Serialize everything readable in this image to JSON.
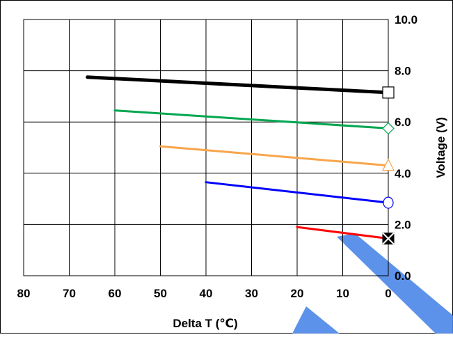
{
  "chart_data": {
    "type": "line",
    "xlabel": "Delta T (℃)",
    "ylabel": "Voltage (V)",
    "xlim": [
      80,
      0
    ],
    "ylim": [
      0,
      10
    ],
    "x_ticks": [
      "80",
      "70",
      "60",
      "50",
      "40",
      "30",
      "20",
      "10",
      "0"
    ],
    "y_ticks": [
      "0.0",
      "2.0",
      "4.0",
      "6.0",
      "8.0",
      "10.0"
    ],
    "y_axis_side": "right",
    "grid": true,
    "series": [
      {
        "color": "#000000",
        "marker": "square",
        "x": [
          66,
          0
        ],
        "y": [
          7.75,
          7.15
        ]
      },
      {
        "color": "#00a651",
        "marker": "diamond",
        "x": [
          60,
          0
        ],
        "y": [
          6.45,
          5.75
        ]
      },
      {
        "color": "#f7a54a",
        "marker": "triangle",
        "x": [
          50,
          0
        ],
        "y": [
          5.05,
          4.3
        ]
      },
      {
        "color": "#0000ff",
        "marker": "circle",
        "x": [
          40,
          0
        ],
        "y": [
          3.65,
          2.85
        ]
      },
      {
        "color": "#ff0000",
        "marker": "x-square",
        "x": [
          20,
          0
        ],
        "y": [
          1.9,
          1.45
        ]
      }
    ],
    "watermark_color": "#4a86e8"
  }
}
